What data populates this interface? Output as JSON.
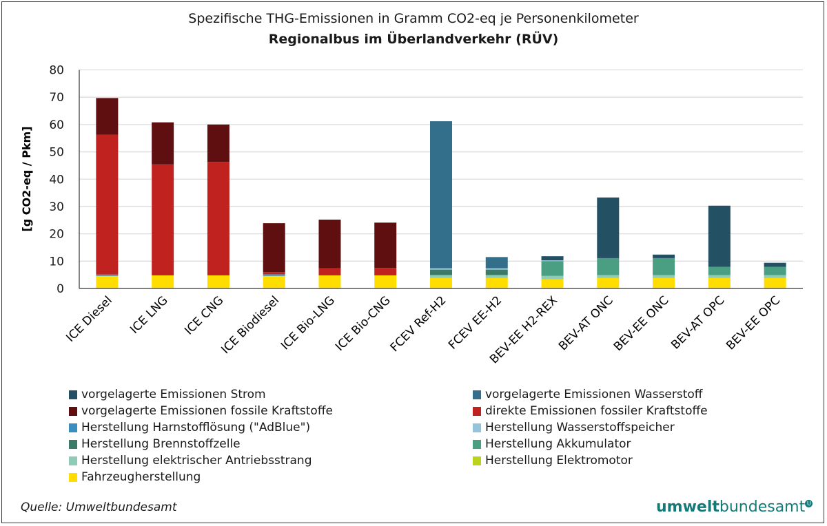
{
  "chart_data": {
    "type": "bar",
    "stacked": true,
    "title": "Spezifische THG-Emissionen in Gramm CO2-eq je Personenkilometer",
    "subtitle": "Regionalbus im Überlandverkehr (RÜV)",
    "ylabel": "[g CO2-eq / Pkm]",
    "ylim": [
      0,
      80
    ],
    "yticks": [
      0,
      10,
      20,
      30,
      40,
      50,
      60,
      70,
      80
    ],
    "grid": true,
    "legend_position": "bottom",
    "categories": [
      "ICE Diesel",
      "ICE LNG",
      "ICE CNG",
      "ICE Biodiesel",
      "ICE Bio-LNG",
      "ICE Bio-CNG",
      "FCEV Ref-H2",
      "FCEV EE-H2",
      "BEV-EE H2-REX",
      "BEV-AT ONC",
      "BEV-EE ONC",
      "BEV-AT OPC",
      "BEV-EE OPC"
    ],
    "series": [
      {
        "name": "Fahrzeugherstellung",
        "color": "#ffdd00",
        "values": [
          4.6,
          4.8,
          4.8,
          4.6,
          4.8,
          4.8,
          3.8,
          3.8,
          3.4,
          3.8,
          3.8,
          3.8,
          3.8
        ]
      },
      {
        "name": "Herstellung Elektromotor",
        "color": "#bcd21e",
        "values": [
          0,
          0,
          0,
          0,
          0,
          0,
          0,
          0,
          0,
          0,
          0,
          0,
          0
        ]
      },
      {
        "name": "Herstellung elektrischer Antriebsstrang",
        "color": "#8fcbb5",
        "values": [
          0,
          0,
          0,
          0,
          0,
          0,
          1.1,
          1.1,
          1.2,
          1.1,
          1.1,
          1.1,
          1.1
        ]
      },
      {
        "name": "Herstellung Akkumulator",
        "color": "#4a9e82",
        "values": [
          0,
          0,
          0,
          0,
          0,
          0,
          0,
          0,
          5.4,
          6.2,
          6.2,
          3.0,
          3.0
        ]
      },
      {
        "name": "Herstellung Brennstoffzelle",
        "color": "#3e7a68",
        "values": [
          0,
          0,
          0,
          0,
          0,
          0,
          2.0,
          2.0,
          0,
          0,
          0,
          0,
          0
        ]
      },
      {
        "name": "Herstellung Wasserstoffspeicher",
        "color": "#93c4dc",
        "values": [
          0,
          0,
          0,
          0,
          0,
          0,
          0.5,
          0.5,
          0.3,
          0,
          0,
          0,
          0
        ]
      },
      {
        "name": "Herstellung Harnstofflösung (\"AdBlue\")",
        "color": "#3a8fc0",
        "values": [
          0.5,
          0,
          0,
          0.6,
          0,
          0,
          0,
          0,
          0,
          0,
          0,
          0,
          0
        ]
      },
      {
        "name": "direkte Emissionen fossiler Kraftstoffe",
        "color": "#c0221f",
        "values": [
          51.2,
          40.6,
          41.5,
          0.8,
          2.6,
          2.7,
          0,
          0,
          0,
          0,
          0,
          0,
          0
        ]
      },
      {
        "name": "vorgelagerte Emissionen fossile Kraftstoffe",
        "color": "#600f10",
        "values": [
          13.4,
          15.4,
          13.7,
          17.9,
          17.8,
          16.6,
          0,
          0,
          0,
          0,
          0,
          0,
          0
        ]
      },
      {
        "name": "vorgelagerte Emissionen Wasserstoff",
        "color": "#336f8b",
        "values": [
          0,
          0,
          0,
          0,
          0,
          0,
          53.8,
          4.1,
          0,
          0,
          0,
          0,
          0
        ]
      },
      {
        "name": "vorgelagerte Emissionen Strom",
        "color": "#245064",
        "values": [
          0,
          0,
          0,
          0,
          0,
          0,
          0,
          0,
          1.5,
          22.2,
          1.3,
          22.4,
          1.5
        ]
      }
    ],
    "legend_order": [
      "vorgelagerte Emissionen Strom",
      "vorgelagerte Emissionen Wasserstoff",
      "vorgelagerte Emissionen fossile Kraftstoffe",
      "direkte Emissionen fossiler Kraftstoffe",
      "Herstellung Harnstofflösung (\"AdBlue\")",
      "Herstellung Wasserstoffspeicher",
      "Herstellung Brennstoffzelle",
      "Herstellung Akkumulator",
      "Herstellung elektrischer Antriebsstrang",
      "Herstellung Elektromotor",
      "Fahrzeugherstellung"
    ]
  },
  "source": "Quelle: Umweltbundesamt",
  "logo": {
    "bold": "umwelt",
    "regular": "bundesamt",
    "badge": "U"
  }
}
